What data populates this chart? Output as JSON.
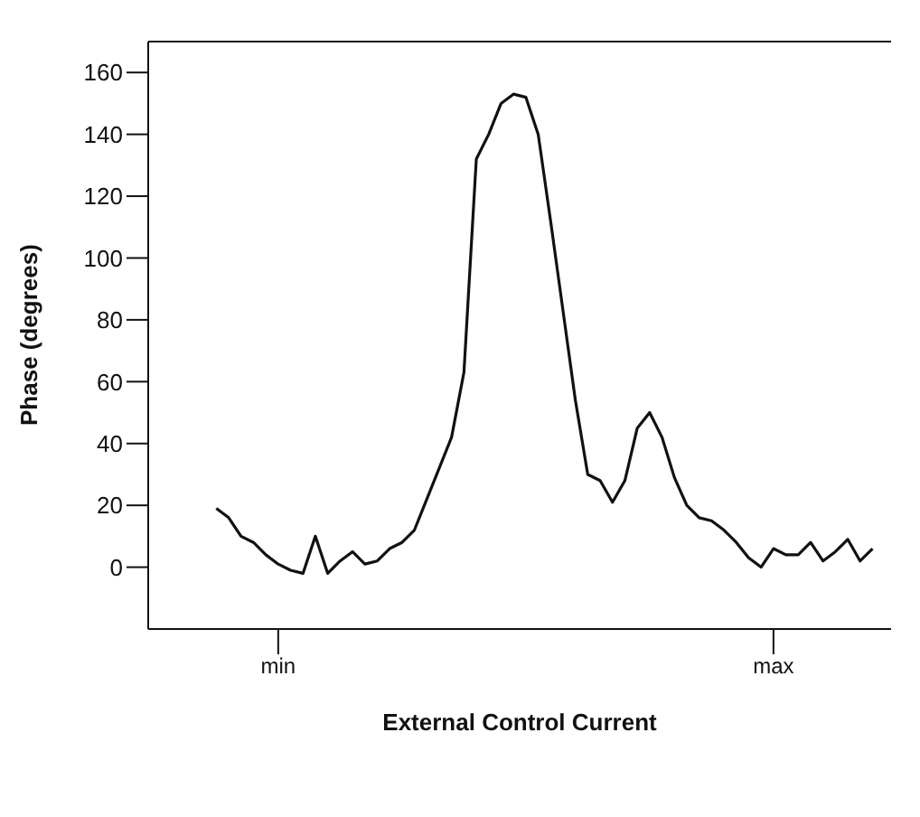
{
  "chart_data": {
    "type": "line",
    "xlabel": "External Control Current",
    "ylabel": "Phase (degrees)",
    "categories": [
      null,
      null,
      null,
      null,
      null,
      null,
      null,
      null,
      null,
      null,
      "min",
      null,
      null,
      null,
      null,
      null,
      null,
      null,
      null,
      null,
      null,
      null,
      null,
      null,
      null,
      null,
      null,
      null,
      null,
      null,
      null,
      null,
      null,
      null,
      null,
      null,
      null,
      null,
      null,
      null,
      null,
      null,
      null,
      null,
      null,
      null,
      null,
      null,
      null,
      null,
      "max",
      null,
      null,
      null,
      null,
      null,
      null,
      null,
      null,
      null
    ],
    "ylim": [
      -20,
      170
    ],
    "yticks": [
      0,
      20,
      40,
      60,
      80,
      100,
      120,
      140,
      160
    ],
    "grid": false,
    "legend": false,
    "marker": "none",
    "line_style": "solid",
    "series": [
      {
        "color": "#111111",
        "values": [
          null,
          null,
          null,
          null,
          null,
          19,
          16,
          10,
          8,
          4,
          1,
          -1,
          -2,
          10,
          -2,
          2,
          5,
          1,
          2,
          6,
          8,
          12,
          22,
          32,
          42,
          63,
          132,
          140,
          150,
          153,
          152,
          140,
          112,
          83,
          54,
          30,
          28,
          21,
          28,
          45,
          50,
          42,
          29,
          20,
          16,
          15,
          12,
          8,
          3,
          0,
          6,
          4,
          4,
          8,
          2,
          5,
          9,
          2,
          6,
          null
        ]
      }
    ]
  }
}
